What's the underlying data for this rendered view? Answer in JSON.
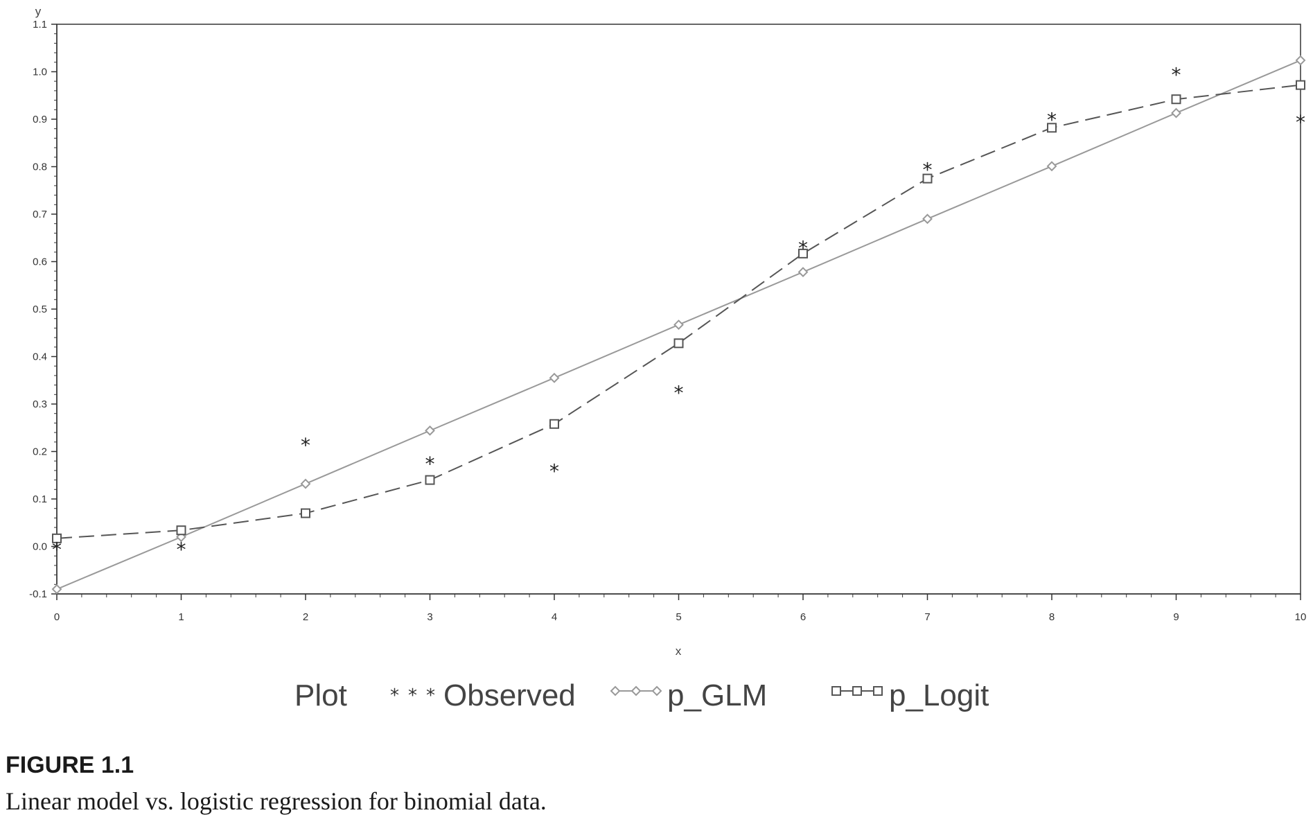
{
  "chart_data": {
    "type": "line",
    "title": "",
    "xlabel": "x",
    "ylabel": "y",
    "xlim": [
      0,
      10
    ],
    "ylim": [
      -0.1,
      1.1
    ],
    "xticks": [
      "0",
      "1",
      "2",
      "3",
      "4",
      "5",
      "6",
      "7",
      "8",
      "9",
      "10"
    ],
    "yticks": [
      "-0.1",
      "0.0",
      "0.1",
      "0.2",
      "0.3",
      "0.4",
      "0.5",
      "0.6",
      "0.7",
      "0.8",
      "0.9",
      "1.0",
      "1.1"
    ],
    "x": [
      0,
      1,
      2,
      3,
      4,
      5,
      6,
      7,
      8,
      9,
      10
    ],
    "series": [
      {
        "name": "Observed",
        "style": "markers-star",
        "color": "#222222",
        "values": [
          0.0,
          0.0,
          0.22,
          0.18,
          0.165,
          0.33,
          0.635,
          0.8,
          0.905,
          1.0,
          0.9
        ]
      },
      {
        "name": "p_GLM",
        "style": "solid-diamond",
        "color": "#999999",
        "values": [
          -0.09,
          0.02,
          0.132,
          0.244,
          0.355,
          0.467,
          0.578,
          0.69,
          0.801,
          0.913,
          1.024
        ]
      },
      {
        "name": "p_Logit",
        "style": "dashed-square",
        "color": "#555555",
        "values": [
          0.017,
          0.034,
          0.07,
          0.14,
          0.258,
          0.428,
          0.617,
          0.775,
          0.882,
          0.942,
          0.972
        ]
      }
    ],
    "legend": {
      "title": "Plot",
      "position": "bottom"
    }
  },
  "caption": {
    "label": "FIGURE 1.1",
    "text": "Linear model vs. logistic regression for binomial data."
  }
}
